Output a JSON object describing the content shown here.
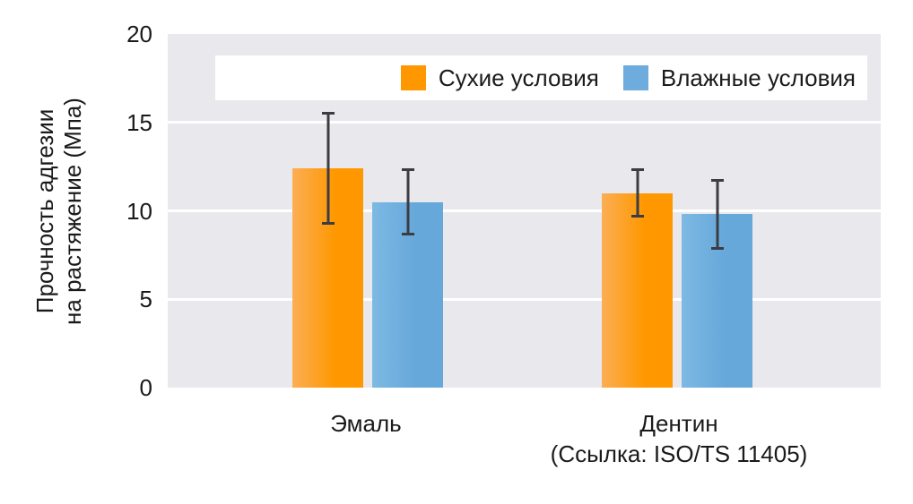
{
  "chart_data": {
    "type": "bar",
    "title": "",
    "ylabel": "Прочность адгезии на растяжение (Мпа)",
    "ylabel_lines": [
      "Прочность адгезии",
      "на растяжение (Мпа)"
    ],
    "categories": [
      {
        "label": "Эмаль",
        "sublabel": ""
      },
      {
        "label": "Дентин",
        "sublabel": "(Ссылка: ISO/TS 11405)"
      }
    ],
    "series": [
      {
        "name": "Сухие условия",
        "values": [
          12.4,
          11.0
        ],
        "errors": [
          3.2,
          1.4
        ],
        "bar_gradient": [
          "#FBAE55",
          "#FF9800"
        ],
        "legend_color": "#FF9800"
      },
      {
        "name": "Влажные условия",
        "values": [
          10.5,
          9.8
        ],
        "errors": [
          1.9,
          2.0
        ],
        "bar_gradient": [
          "#7DB9E3",
          "#67A8DB"
        ],
        "legend_color": "#6FACDE"
      }
    ],
    "yticks": [
      0,
      5,
      10,
      15,
      20
    ],
    "ylim": [
      0,
      20
    ],
    "grid_values": [
      5,
      10,
      15
    ],
    "grid": true,
    "legend_position": "upper-inside-right",
    "colors": {
      "plot_background": "#E9E9ED",
      "grid": "#FFFFFF",
      "error_bar": "#3C3C44",
      "text": "#1A1A1A",
      "legend_background": "#FFFFFF",
      "figure_background": "#FFFFFF"
    }
  }
}
